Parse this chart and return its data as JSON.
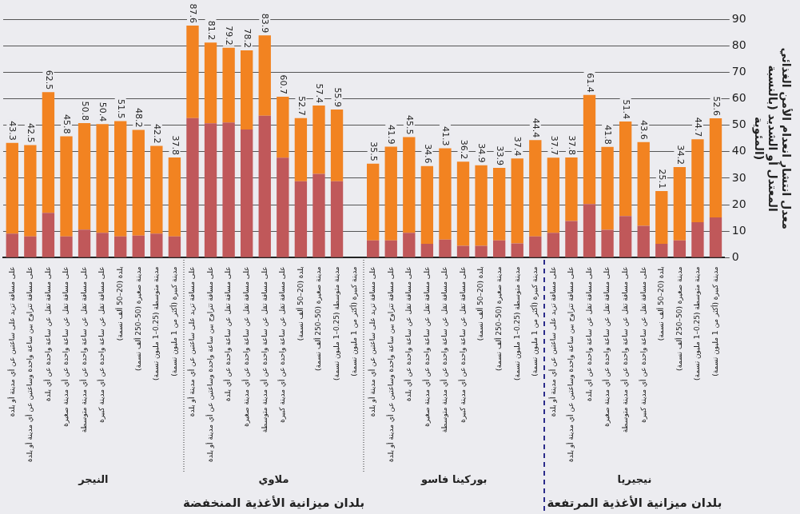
{
  "chart_data": {
    "type": "bar",
    "stacked": true,
    "ylabel": "معدل انتشار انعدام الأمن الغذائي المعتدل أو الشديد (بالنسبة المئوية)",
    "categories": [
      "على مسافة تزيد على ساعتين عن أي مدينة أو بلدة",
      "على مسافة تتراوح بين ساعة واحدة وساعتين عن أي مدينة أو بلدة",
      "على مسافة تقل عن ساعة واحدة عن أي بلدة",
      "على مسافة تقل عن ساعة واحدة عن أي مدينة صغيرة",
      "على مسافة تقل عن ساعة واحدة عن أي مدينة متوسطة",
      "على مسافة تقل عن ساعة واحدة عن أي مدينة كبيرة",
      "بلدة (20–50 ألف نسمة)",
      "مدينة صغيرة (50–250 ألف نسمة)",
      "مدينة متوسطة (0.25–1 مليون نسمة)",
      "مدينة كبيرة (أكثر من 1 مليون نسمة)",
      "على مسافة تزيد على ساعتين عن أي مدينة أو بلدة",
      "على مسافة تتراوح بين ساعة واحدة وساعتين عن أي مدينة أو بلدة",
      "على مسافة تقل عن ساعة واحدة عن أي بلدة",
      "على مسافة تقل عن ساعة واحدة عن أي مدينة صغيرة",
      "على مسافة تقل عن ساعة واحدة عن أي مدينة متوسطة",
      "على مسافة تقل عن ساعة واحدة عن أي مدينة كبيرة",
      "بلدة (20–50 ألف نسمة)",
      "مدينة صغيرة (50–250 ألف نسمة)",
      "مدينة متوسطة (0.25–1 مليون نسمة)",
      "مدينة كبيرة (أكثر من 1 مليون نسمة)",
      "على مسافة تزيد على ساعتين عن أي مدينة أو بلدة",
      "على مسافة تتراوح بين ساعة واحدة وساعتين عن أي مدينة أو بلدة",
      "على مسافة تقل عن ساعة واحدة عن أي بلدة",
      "على مسافة تقل عن ساعة واحدة عن أي مدينة صغيرة",
      "على مسافة تقل عن ساعة واحدة عن أي مدينة متوسطة",
      "على مسافة تقل عن ساعة واحدة عن أي مدينة كبيرة",
      "بلدة (20–50 ألف نسمة)",
      "مدينة صغيرة (50–250 ألف نسمة)",
      "مدينة متوسطة (0.25–1 مليون نسمة)",
      "مدينة كبيرة (أكثر من 1 مليون نسمة)",
      "على مسافة تزيد على ساعتين عن أي مدينة أو بلدة",
      "على مسافة تتراوح بين ساعة واحدة وساعتين عن أي مدينة أو بلدة",
      "على مسافة تقل عن ساعة واحدة عن أي بلدة",
      "على مسافة تقل عن ساعة واحدة عن أي مدينة صغيرة",
      "على مسافة تقل عن ساعة واحدة عن أي مدينة متوسطة",
      "على مسافة تقل عن ساعة واحدة عن أي مدينة كبيرة",
      "بلدة (20–50 ألف نسمة)",
      "مدينة صغيرة (50–250 ألف نسمة)",
      "مدينة متوسطة (0.25–1 مليون نسمة)",
      "مدينة كبيرة (أكثر من 1 مليون نسمة)"
    ],
    "series": [
      {
        "color": "#c0585a",
        "values": [
          9.1,
          8.0,
          16.9,
          8.0,
          10.6,
          9.4,
          8.0,
          8.3,
          9.1,
          8.0,
          52.7,
          50.7,
          51.0,
          48.4,
          53.6,
          37.7,
          28.8,
          31.6,
          28.8,
          null,
          6.5,
          6.5,
          9.4,
          5.2,
          6.8,
          4.5,
          4.5,
          6.5,
          5.4,
          8.0,
          9.4,
          13.8,
          20.2,
          10.5,
          15.7,
          12.0,
          5.2,
          6.5,
          13.4,
          15.2
        ]
      },
      {
        "color": "#f28321",
        "values": [
          34.2,
          34.5,
          45.6,
          37.8,
          40.2,
          41.0,
          43.5,
          39.9,
          33.1,
          29.8,
          34.9,
          30.5,
          28.2,
          29.8,
          30.3,
          23.0,
          23.9,
          25.8,
          27.1,
          null,
          29.0,
          35.4,
          36.1,
          29.4,
          34.5,
          31.7,
          30.4,
          27.4,
          32.0,
          36.4,
          28.3,
          24.0,
          41.2,
          31.3,
          35.7,
          31.6,
          19.9,
          27.7,
          31.3,
          37.4
        ]
      }
    ],
    "totals": [
      "43.3",
      "42.5",
      "62.5",
      "45.8",
      "50.8",
      "50.4",
      "51.5",
      "48.2",
      "42.2",
      "37.8",
      "87.6",
      "81.2",
      "79.2",
      "78.2",
      "83.9",
      "60.7",
      "52.7",
      "57.4",
      "55.9",
      null,
      "35.5",
      "41.9",
      "45.5",
      "34.6",
      "41.3",
      "36.2",
      "34.9",
      "33.9",
      "37.4",
      "44.4",
      "37.7",
      "37.8",
      "61.4",
      "41.8",
      "51.4",
      "43.6",
      "25.1",
      "34.2",
      "44.7",
      "52.6"
    ],
    "ylim": [
      0,
      90
    ],
    "yticks": [
      0,
      10,
      20,
      30,
      40,
      50,
      60,
      70,
      80,
      90
    ],
    "grid": "y",
    "legend": false,
    "annotations": [
      "النيجر",
      "ملاوي",
      "بوركينا فاسو",
      "نيجيريا",
      "بلدان ميزانية الأغذية المنخفضة",
      "بلدان ميزانية الأغذية المرتفعة"
    ]
  }
}
